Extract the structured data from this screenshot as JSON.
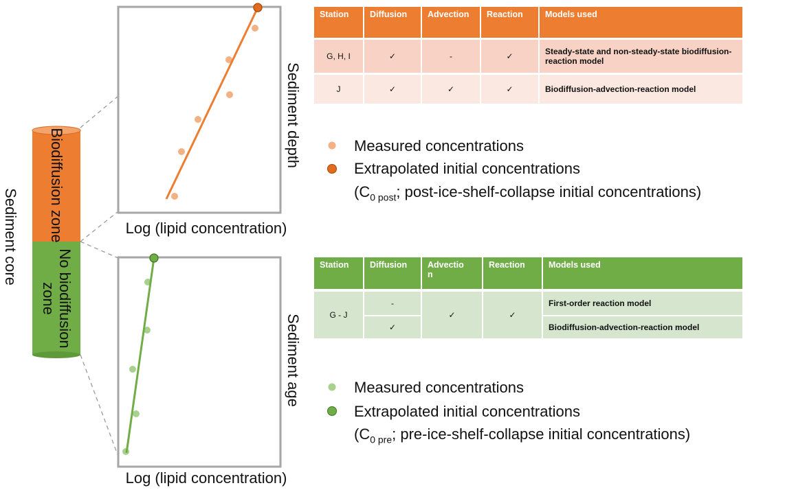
{
  "core": {
    "label": "Sediment core",
    "upper_zone": "Biodiffusion zone",
    "lower_zone": "No biodiffusion zone"
  },
  "top_panel": {
    "y_label": "Sediment depth",
    "x_label": "Log (lipid concentration)",
    "table": {
      "header": [
        "Station",
        "Diffusion",
        "Advection",
        "Reaction",
        "Models used"
      ],
      "rows": [
        [
          "G, H, I",
          "✓",
          "-",
          "✓",
          "Steady-state and non-steady-state biodiffusion-reaction model"
        ],
        [
          "J",
          "✓",
          "✓",
          "✓",
          "Biodiffusion-advection-reaction model"
        ]
      ]
    },
    "legend": [
      "Measured concentrations",
      "Extrapolated initial concentrations"
    ],
    "note": {
      "prefix": "(C",
      "subscript": "0 post",
      "suffix": "; post-ice-shelf-collapse initial concentrations)"
    }
  },
  "bottom_panel": {
    "y_label": "Sediment age",
    "x_label": "Log (lipid concentration)",
    "table": {
      "header": [
        "Station",
        "Diffusion",
        "Advection",
        "Reaction",
        "Models used"
      ],
      "rows": [
        [
          "G - J",
          "-",
          "✓",
          "✓",
          "First-order reaction model"
        ],
        [
          "✓",
          "Biodiffusion-advection-reaction model"
        ]
      ]
    },
    "legend": [
      "Measured concentrations",
      "Extrapolated initial concentrations"
    ],
    "note": {
      "prefix": "(C",
      "subscript": "0 pre",
      "suffix": "; pre-ice-shelf-collapse initial concentrations)"
    }
  }
}
